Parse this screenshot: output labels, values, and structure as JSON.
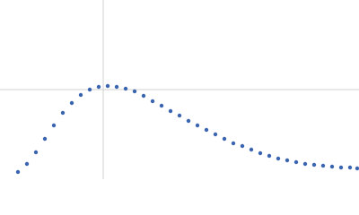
{
  "chart_data": {
    "type": "scatter",
    "color": "#3a64b0",
    "x": [
      0.2,
      0.3,
      0.4,
      0.5,
      0.6,
      0.7,
      0.8,
      0.9,
      1.0,
      1.1,
      1.2,
      1.3,
      1.4,
      1.5,
      1.6,
      1.7,
      1.8,
      1.9,
      2.0,
      2.1,
      2.2,
      2.3,
      2.4,
      2.5,
      2.6,
      2.7,
      2.8,
      2.9,
      3.0,
      3.1,
      3.2,
      3.3,
      3.4,
      3.5,
      3.6,
      3.7,
      3.8,
      3.9,
      3.98
    ],
    "y": [
      -0.92,
      -0.83,
      -0.7,
      -0.55,
      -0.4,
      -0.26,
      -0.15,
      -0.06,
      0.0,
      0.03,
      0.04,
      0.03,
      0.01,
      -0.02,
      -0.07,
      -0.13,
      -0.18,
      -0.24,
      -0.29,
      -0.35,
      -0.4,
      -0.45,
      -0.5,
      -0.55,
      -0.6,
      -0.63,
      -0.67,
      -0.71,
      -0.74,
      -0.77,
      -0.79,
      -0.81,
      -0.83,
      -0.84,
      -0.85,
      -0.86,
      -0.87,
      -0.87,
      -0.88
    ],
    "xlim": [
      0,
      4
    ],
    "ylim": [
      -1,
      1
    ],
    "xref": 1.15,
    "yref": 0
  }
}
